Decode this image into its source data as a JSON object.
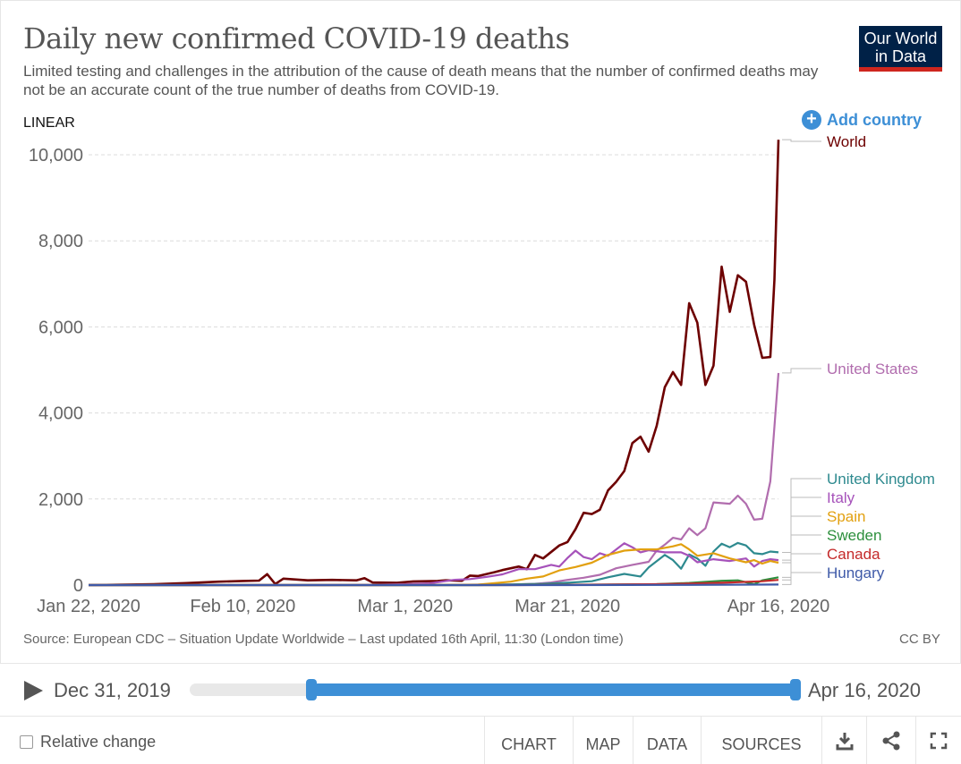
{
  "header": {
    "title": "Daily new confirmed COVID-19 deaths",
    "subtitle": "Limited testing and challenges in the attribution of the cause of death means that the number of confirmed deaths may not be an accurate count of the true number of deaths from COVID-19.",
    "logo_line1": "Our World",
    "logo_line2": "in Data"
  },
  "controls": {
    "scale": "LINEAR",
    "add_country": "Add country"
  },
  "chart_data": {
    "type": "line",
    "title": "Daily new confirmed COVID-19 deaths",
    "x_tick_labels": [
      "Jan 22, 2020",
      "Feb 10, 2020",
      "Mar 1, 2020",
      "Mar 21, 2020",
      "Apr 16, 2020"
    ],
    "y_tick_labels": [
      "0",
      "2,000",
      "4,000",
      "6,000",
      "8,000",
      "10,000"
    ],
    "ylim": [
      0,
      10000
    ],
    "xlim": [
      "2020-01-22",
      "2020-04-16"
    ],
    "grid": "horizontal dashed",
    "legend": "line-end labels, right",
    "series": [
      {
        "name": "World",
        "color": "#6d0000",
        "points": [
          [
            "2020-01-22",
            0
          ],
          [
            "2020-01-26",
            8
          ],
          [
            "2020-01-30",
            20
          ],
          [
            "2020-02-03",
            45
          ],
          [
            "2020-02-07",
            80
          ],
          [
            "2020-02-10",
            95
          ],
          [
            "2020-02-12",
            103
          ],
          [
            "2020-02-13",
            254
          ],
          [
            "2020-02-14",
            25
          ],
          [
            "2020-02-15",
            150
          ],
          [
            "2020-02-18",
            110
          ],
          [
            "2020-02-21",
            120
          ],
          [
            "2020-02-24",
            110
          ],
          [
            "2020-02-25",
            160
          ],
          [
            "2020-02-26",
            60
          ],
          [
            "2020-02-29",
            55
          ],
          [
            "2020-03-02",
            85
          ],
          [
            "2020-03-05",
            95
          ],
          [
            "2020-03-06",
            110
          ],
          [
            "2020-03-08",
            100
          ],
          [
            "2020-03-09",
            220
          ],
          [
            "2020-03-10",
            210
          ],
          [
            "2020-03-12",
            300
          ],
          [
            "2020-03-13",
            350
          ],
          [
            "2020-03-15",
            430
          ],
          [
            "2020-03-16",
            370
          ],
          [
            "2020-03-17",
            700
          ],
          [
            "2020-03-18",
            620
          ],
          [
            "2020-03-20",
            920
          ],
          [
            "2020-03-21",
            1000
          ],
          [
            "2020-03-22",
            1300
          ],
          [
            "2020-03-23",
            1680
          ],
          [
            "2020-03-24",
            1650
          ],
          [
            "2020-03-25",
            1750
          ],
          [
            "2020-03-26",
            2200
          ],
          [
            "2020-03-27",
            2400
          ],
          [
            "2020-03-28",
            2650
          ],
          [
            "2020-03-29",
            3300
          ],
          [
            "2020-03-30",
            3450
          ],
          [
            "2020-03-31",
            3100
          ],
          [
            "2020-04-01",
            3700
          ],
          [
            "2020-04-02",
            4600
          ],
          [
            "2020-04-03",
            4950
          ],
          [
            "2020-04-04",
            4650
          ],
          [
            "2020-04-05",
            6550
          ],
          [
            "2020-04-06",
            6100
          ],
          [
            "2020-04-07",
            4650
          ],
          [
            "2020-04-08",
            5100
          ],
          [
            "2020-04-09",
            7400
          ],
          [
            "2020-04-10",
            6350
          ],
          [
            "2020-04-11",
            7200
          ],
          [
            "2020-04-12",
            7050
          ],
          [
            "2020-04-13",
            6050
          ],
          [
            "2020-04-14",
            5280
          ],
          [
            "2020-04-15",
            5300
          ],
          [
            "2020-04-15.5",
            7100
          ],
          [
            "2020-04-16",
            10350
          ]
        ]
      },
      {
        "name": "United States",
        "color": "#b16dae",
        "points": [
          [
            "2020-01-22",
            0
          ],
          [
            "2020-02-28",
            0
          ],
          [
            "2020-03-05",
            5
          ],
          [
            "2020-03-10",
            10
          ],
          [
            "2020-03-14",
            15
          ],
          [
            "2020-03-17",
            30
          ],
          [
            "2020-03-19",
            60
          ],
          [
            "2020-03-21",
            120
          ],
          [
            "2020-03-23",
            170
          ],
          [
            "2020-03-25",
            240
          ],
          [
            "2020-03-27",
            390
          ],
          [
            "2020-03-29",
            470
          ],
          [
            "2020-03-31",
            540
          ],
          [
            "2020-04-01",
            800
          ],
          [
            "2020-04-02",
            940
          ],
          [
            "2020-04-03",
            1100
          ],
          [
            "2020-04-04",
            1060
          ],
          [
            "2020-04-05",
            1320
          ],
          [
            "2020-04-06",
            1160
          ],
          [
            "2020-04-07",
            1320
          ],
          [
            "2020-04-08",
            1920
          ],
          [
            "2020-04-10",
            1890
          ],
          [
            "2020-04-11",
            2080
          ],
          [
            "2020-04-12",
            1890
          ],
          [
            "2020-04-13",
            1520
          ],
          [
            "2020-04-14",
            1540
          ],
          [
            "2020-04-15",
            2410
          ],
          [
            "2020-04-16",
            4930
          ]
        ]
      },
      {
        "name": "United Kingdom",
        "color": "#2e8a8f",
        "points": [
          [
            "2020-01-22",
            0
          ],
          [
            "2020-03-10",
            0
          ],
          [
            "2020-03-18",
            30
          ],
          [
            "2020-03-21",
            55
          ],
          [
            "2020-03-24",
            90
          ],
          [
            "2020-03-26",
            180
          ],
          [
            "2020-03-28",
            260
          ],
          [
            "2020-03-30",
            200
          ],
          [
            "2020-03-31",
            410
          ],
          [
            "2020-04-02",
            700
          ],
          [
            "2020-04-03",
            580
          ],
          [
            "2020-04-04",
            380
          ],
          [
            "2020-04-05",
            710
          ],
          [
            "2020-04-06",
            620
          ],
          [
            "2020-04-07",
            450
          ],
          [
            "2020-04-08",
            780
          ],
          [
            "2020-04-09",
            960
          ],
          [
            "2020-04-10",
            880
          ],
          [
            "2020-04-11",
            980
          ],
          [
            "2020-04-12",
            920
          ],
          [
            "2020-04-13",
            740
          ],
          [
            "2020-04-14",
            720
          ],
          [
            "2020-04-15",
            780
          ],
          [
            "2020-04-16",
            760
          ]
        ]
      },
      {
        "name": "Italy",
        "color": "#a652ba",
        "points": [
          [
            "2020-01-22",
            0
          ],
          [
            "2020-02-20",
            0
          ],
          [
            "2020-02-25",
            5
          ],
          [
            "2020-03-01",
            20
          ],
          [
            "2020-03-04",
            40
          ],
          [
            "2020-03-07",
            120
          ],
          [
            "2020-03-09",
            140
          ],
          [
            "2020-03-11",
            190
          ],
          [
            "2020-03-13",
            250
          ],
          [
            "2020-03-15",
            370
          ],
          [
            "2020-03-17",
            370
          ],
          [
            "2020-03-19",
            470
          ],
          [
            "2020-03-20",
            430
          ],
          [
            "2020-03-21",
            630
          ],
          [
            "2020-03-22",
            800
          ],
          [
            "2020-03-23",
            650
          ],
          [
            "2020-03-24",
            600
          ],
          [
            "2020-03-25",
            740
          ],
          [
            "2020-03-26",
            680
          ],
          [
            "2020-03-28",
            970
          ],
          [
            "2020-03-29",
            880
          ],
          [
            "2020-03-30",
            760
          ],
          [
            "2020-03-31",
            810
          ],
          [
            "2020-04-02",
            760
          ],
          [
            "2020-04-04",
            760
          ],
          [
            "2020-04-05",
            680
          ],
          [
            "2020-04-06",
            530
          ],
          [
            "2020-04-08",
            600
          ],
          [
            "2020-04-10",
            560
          ],
          [
            "2020-04-12",
            620
          ],
          [
            "2020-04-13",
            430
          ],
          [
            "2020-04-14",
            560
          ],
          [
            "2020-04-15",
            600
          ],
          [
            "2020-04-16",
            580
          ]
        ]
      },
      {
        "name": "Spain",
        "color": "#e2a00f",
        "points": [
          [
            "2020-01-22",
            0
          ],
          [
            "2020-03-05",
            0
          ],
          [
            "2020-03-10",
            10
          ],
          [
            "2020-03-14",
            80
          ],
          [
            "2020-03-16",
            150
          ],
          [
            "2020-03-18",
            200
          ],
          [
            "2020-03-20",
            340
          ],
          [
            "2020-03-22",
            420
          ],
          [
            "2020-03-24",
            520
          ],
          [
            "2020-03-26",
            700
          ],
          [
            "2020-03-28",
            800
          ],
          [
            "2020-03-30",
            830
          ],
          [
            "2020-04-01",
            830
          ],
          [
            "2020-04-03",
            900
          ],
          [
            "2020-04-04",
            950
          ],
          [
            "2020-04-05",
            830
          ],
          [
            "2020-04-06",
            680
          ],
          [
            "2020-04-08",
            740
          ],
          [
            "2020-04-10",
            620
          ],
          [
            "2020-04-12",
            530
          ],
          [
            "2020-04-13",
            580
          ],
          [
            "2020-04-14",
            500
          ],
          [
            "2020-04-15",
            560
          ],
          [
            "2020-04-16",
            520
          ]
        ]
      },
      {
        "name": "Sweden",
        "color": "#2c8f3c",
        "points": [
          [
            "2020-01-22",
            0
          ],
          [
            "2020-03-12",
            0
          ],
          [
            "2020-03-25",
            10
          ],
          [
            "2020-04-01",
            20
          ],
          [
            "2020-04-05",
            50
          ],
          [
            "2020-04-09",
            100
          ],
          [
            "2020-04-11",
            110
          ],
          [
            "2020-04-13",
            20
          ],
          [
            "2020-04-14",
            110
          ],
          [
            "2020-04-16",
            180
          ]
        ]
      },
      {
        "name": "Canada",
        "color": "#c42a2a",
        "points": [
          [
            "2020-01-22",
            0
          ],
          [
            "2020-03-15",
            0
          ],
          [
            "2020-03-25",
            10
          ],
          [
            "2020-04-01",
            20
          ],
          [
            "2020-04-06",
            40
          ],
          [
            "2020-04-10",
            60
          ],
          [
            "2020-04-14",
            90
          ],
          [
            "2020-04-16",
            120
          ]
        ]
      },
      {
        "name": "Hungary",
        "color": "#3f5aa8",
        "points": [
          [
            "2020-01-22",
            0
          ],
          [
            "2020-03-20",
            0
          ],
          [
            "2020-04-05",
            5
          ],
          [
            "2020-04-16",
            12
          ]
        ]
      }
    ]
  },
  "footer_text": {
    "source": "Source: European CDC – Situation Update Worldwide – Last updated 16th April, 11:30 (London time)",
    "license": "CC BY"
  },
  "timeline": {
    "start_label": "Dec 31, 2019",
    "end_label": "Apr 16, 2020",
    "range_start_fraction": 0.2,
    "range_end_fraction": 1.0
  },
  "footer": {
    "relative_change": "Relative change",
    "tabs": [
      "CHART",
      "MAP",
      "DATA",
      "SOURCES"
    ]
  }
}
